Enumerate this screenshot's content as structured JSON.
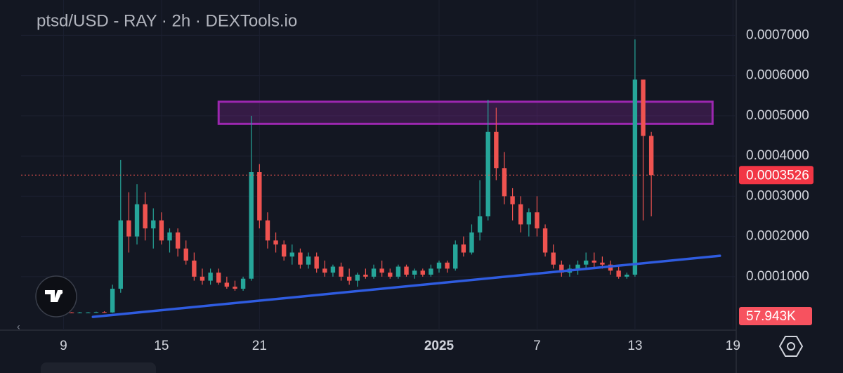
{
  "chart_data": {
    "type": "candlestick",
    "title": "ptsd/USD - RAY · 2h · DEXTools.io",
    "up_color": "#26a69a",
    "down_color": "#ef5350",
    "xlim": [
      -2.6,
      41.2
    ],
    "xticks": [
      {
        "value": 0,
        "label": "9"
      },
      {
        "value": 6,
        "label": "15"
      },
      {
        "value": 12,
        "label": "21"
      },
      {
        "value": 23,
        "label": "2025"
      },
      {
        "value": 29,
        "label": "7"
      },
      {
        "value": 35,
        "label": "13"
      },
      {
        "value": 41,
        "label": "19"
      }
    ],
    "ylim": [
      -3.3e-05,
      0.000788
    ],
    "yticks": [
      {
        "value": 0.0001,
        "label": "0.0001000"
      },
      {
        "value": 0.0002,
        "label": "0.0002000"
      },
      {
        "value": 0.0003,
        "label": "0.0003000"
      },
      {
        "value": 0.0004,
        "label": "0.0004000"
      },
      {
        "value": 0.0005,
        "label": "0.0005000"
      },
      {
        "value": 0.0006,
        "label": "0.0006000"
      },
      {
        "value": 0.0007,
        "label": "0.0007000"
      }
    ],
    "current_price": {
      "value": 0.0003526,
      "label": "0.0003526"
    },
    "volume_label": "57.943K",
    "zone": {
      "x": [
        9.5,
        39.75
      ],
      "low": 0.00048,
      "high": 0.000535,
      "color": "#9c27b0"
    },
    "trendline": {
      "x": [
        1.8,
        40.2
      ],
      "y": [
        0,
        0.000152
      ],
      "color": "#2f5ce0"
    },
    "candles": {
      "x": [
        0,
        0.5,
        1,
        1.5,
        2,
        2.5,
        3,
        3.5,
        4,
        4.5,
        5,
        5.5,
        6,
        6.5,
        7,
        7.5,
        8,
        8.5,
        9,
        9.5,
        10,
        10.5,
        11,
        11.5,
        12,
        12.5,
        13,
        13.5,
        14,
        14.5,
        15,
        15.5,
        16,
        16.5,
        17,
        17.5,
        18,
        18.5,
        19,
        19.5,
        20,
        20.5,
        21,
        21.5,
        22,
        22.5,
        23,
        23.5,
        24,
        24.5,
        25,
        25.5,
        26,
        26.5,
        27,
        27.5,
        28,
        28.5,
        29,
        29.5,
        30,
        30.5,
        31,
        31.5,
        32,
        32.5,
        33,
        33.5,
        34,
        34.5,
        35,
        35.5,
        36
      ],
      "open": [
        1e-05,
        1.1e-05,
        1e-05,
        1.1e-05,
        1.1e-05,
        1.2e-05,
        1.1e-05,
        7e-05,
        0.00024,
        0.0002,
        0.00028,
        0.00022,
        0.00024,
        0.00019,
        0.00021,
        0.00017,
        0.00014,
        0.0001,
        9e-05,
        0.00011,
        8.5e-05,
        7.5e-05,
        7e-05,
        9.5e-05,
        0.00036,
        0.00024,
        0.00019,
        0.00018,
        0.00015,
        0.00016,
        0.00013,
        0.00015,
        0.00012,
        0.00011,
        0.000125,
        0.0001,
        9e-05,
        0.000105,
        0.0001,
        0.00012,
        0.00011,
        0.0001,
        0.000125,
        0.000105,
        0.000115,
        0.000105,
        0.00012,
        0.000135,
        0.00012,
        0.00018,
        0.00016,
        0.00021,
        0.00025,
        0.00046,
        0.00037,
        0.0003,
        0.00028,
        0.00023,
        0.00026,
        0.00022,
        0.00016,
        0.00013,
        0.00011,
        0.00012,
        0.00013,
        0.00014,
        0.000135,
        0.00013,
        0.000115,
        0.0001,
        0.000105,
        0.00059,
        0.00045
      ],
      "high": [
        1.2e-05,
        1.2e-05,
        1.2e-05,
        1.2e-05,
        1.3e-05,
        1.4e-05,
        8e-05,
        0.00039,
        0.00031,
        0.00033,
        0.00031,
        0.00027,
        0.00026,
        0.00022,
        0.00022,
        0.00019,
        0.00016,
        0.00012,
        0.00012,
        0.00012,
        0.0001,
        9e-05,
        0.0001,
        0.0005,
        0.00038,
        0.00026,
        0.00021,
        0.00019,
        0.00018,
        0.00017,
        0.00016,
        0.00016,
        0.00014,
        0.00013,
        0.000135,
        0.00012,
        0.00011,
        0.00012,
        0.00013,
        0.00014,
        0.00012,
        0.00013,
        0.00013,
        0.00012,
        0.00012,
        0.00013,
        0.00014,
        0.00014,
        0.00019,
        0.0002,
        0.00023,
        0.00034,
        0.00054,
        0.00052,
        0.00041,
        0.00032,
        0.0003,
        0.00027,
        0.0003,
        0.00023,
        0.00018,
        0.00014,
        0.00013,
        0.00014,
        0.00016,
        0.00016,
        0.00015,
        0.00014,
        0.000125,
        0.00011,
        0.00069,
        0.00059,
        0.00046
      ],
      "low": [
        9e-06,
        1e-05,
        9e-06,
        1e-05,
        1e-05,
        1e-05,
        1e-05,
        6e-05,
        0.00016,
        0.00018,
        0.00019,
        0.00017,
        0.00018,
        0.00016,
        0.00015,
        0.00013,
        9e-05,
        8e-05,
        8e-05,
        8e-05,
        7e-05,
        6.5e-05,
        6.5e-05,
        9e-05,
        0.00022,
        0.00017,
        0.00016,
        0.00014,
        0.00013,
        0.00012,
        0.00012,
        0.00011,
        0.0001,
        0.0001,
        9e-05,
        8e-05,
        7.5e-05,
        9.5e-05,
        9.5e-05,
        0.0001,
        9.5e-05,
        9.5e-05,
        0.0001,
        9.5e-05,
        0.0001,
        0.0001,
        0.00011,
        0.00011,
        0.000115,
        0.00015,
        0.000155,
        0.00019,
        0.00024,
        0.00034,
        0.00028,
        0.00024,
        0.00021,
        0.0002,
        0.0002,
        0.00015,
        0.00012,
        0.0001,
        0.0001,
        0.000105,
        0.00012,
        0.00012,
        0.00012,
        0.000105,
        9.5e-05,
        9.5e-05,
        0.0001,
        0.00024,
        0.00025
      ],
      "close": [
        1.1e-05,
        1e-05,
        1.1e-05,
        1.1e-05,
        1.2e-05,
        1.1e-05,
        7e-05,
        0.00024,
        0.0002,
        0.00028,
        0.00022,
        0.00024,
        0.00019,
        0.00021,
        0.00017,
        0.00014,
        0.0001,
        9e-05,
        0.00011,
        8.5e-05,
        7.5e-05,
        7e-05,
        9.5e-05,
        0.00036,
        0.00024,
        0.00019,
        0.00018,
        0.00015,
        0.00016,
        0.00013,
        0.00015,
        0.00012,
        0.00011,
        0.000125,
        0.0001,
        9e-05,
        0.000105,
        0.0001,
        0.00012,
        0.00011,
        0.0001,
        0.000125,
        0.000105,
        0.000115,
        0.000105,
        0.00012,
        0.000135,
        0.00012,
        0.00018,
        0.00016,
        0.00021,
        0.00025,
        0.00046,
        0.00037,
        0.0003,
        0.00028,
        0.00023,
        0.00026,
        0.00022,
        0.00016,
        0.00013,
        0.00011,
        0.00012,
        0.00013,
        0.00014,
        0.000135,
        0.00013,
        0.000115,
        0.0001,
        0.000105,
        0.00059,
        0.00045,
        0.0003526
      ]
    }
  }
}
